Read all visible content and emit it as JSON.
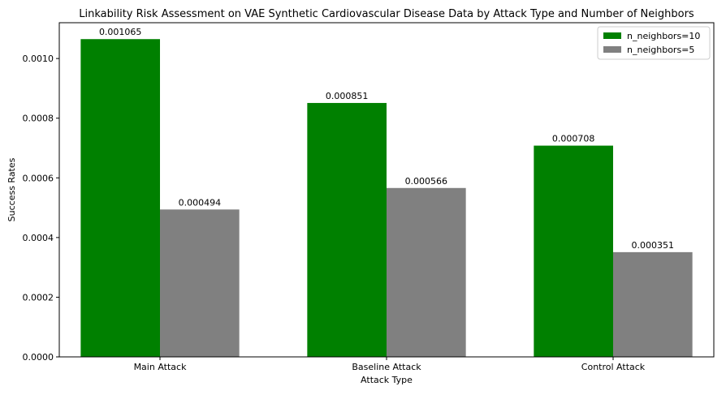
{
  "chart_data": {
    "type": "bar",
    "title": "Linkability Risk Assessment on VAE Synthetic Cardiovascular Disease Data by Attack Type and Number of Neighbors",
    "xlabel": "Attack Type",
    "ylabel": "Success Rates",
    "categories": [
      "Main Attack",
      "Baseline Attack",
      "Control Attack"
    ],
    "series": [
      {
        "name": "n_neighbors=10",
        "color": "#008000",
        "values": [
          0.001065,
          0.000851,
          0.000708
        ],
        "labels": [
          "0.001065",
          "0.000851",
          "0.000708"
        ]
      },
      {
        "name": "n_neighbors=5",
        "color": "#808080",
        "values": [
          0.000494,
          0.000566,
          0.000351
        ],
        "labels": [
          "0.000494",
          "0.000566",
          "0.000351"
        ]
      }
    ],
    "ylim": [
      0,
      0.00112
    ],
    "yticks": [
      0,
      0.0002,
      0.0004,
      0.0006,
      0.0008,
      0.001
    ],
    "ytick_labels": [
      "0.0000",
      "0.0002",
      "0.0004",
      "0.0006",
      "0.0008",
      "0.0010"
    ],
    "grid": false,
    "legend_position": "top-right"
  }
}
